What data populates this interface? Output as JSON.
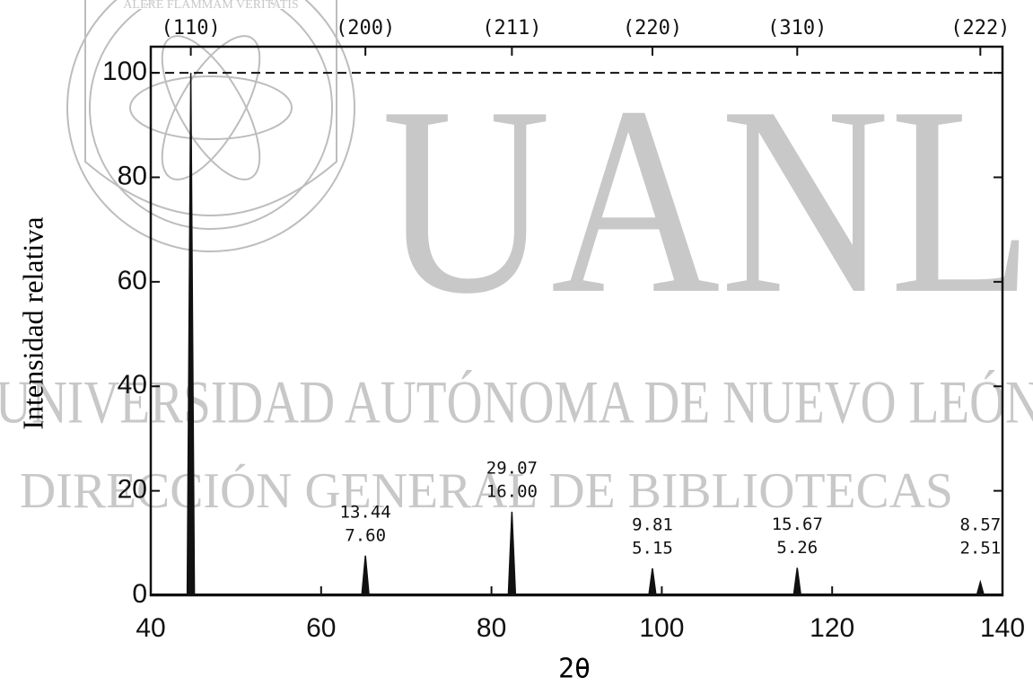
{
  "watermark": {
    "motto": "ALERE FLAMMAM VERITATIS",
    "acronym": "UANL",
    "university": "UNIVERSIDAD AUTÓNOMA DE NUEVO LEÓN",
    "library": "DIRECCIÓN GENERAL DE BIBLIOTECAS"
  },
  "chart_data": {
    "type": "stick",
    "xlabel": "2θ",
    "ylabel": "Intensidad relativa",
    "x": [
      44.7,
      65.2,
      82.4,
      98.9,
      115.9,
      137.4
    ],
    "hkl": [
      "(110)",
      "(200)",
      "(211)",
      "(220)",
      "(310)",
      "(222)"
    ],
    "values": [
      100,
      7.6,
      16,
      5.15,
      5.26,
      2.51
    ],
    "value_labels": [
      null,
      "7.60",
      "16.00",
      "5.15",
      "5.26",
      "2.51"
    ],
    "secondary_values": [
      null,
      13.44,
      29.07,
      9.81,
      15.67,
      8.57
    ],
    "color": "#111111",
    "reference_line": 100,
    "xlim": [
      40,
      140
    ],
    "xticks": [
      40,
      60,
      80,
      100,
      120,
      140
    ],
    "ylim": [
      0,
      105
    ],
    "yticks": [
      0,
      20,
      40,
      60,
      80,
      100
    ]
  }
}
